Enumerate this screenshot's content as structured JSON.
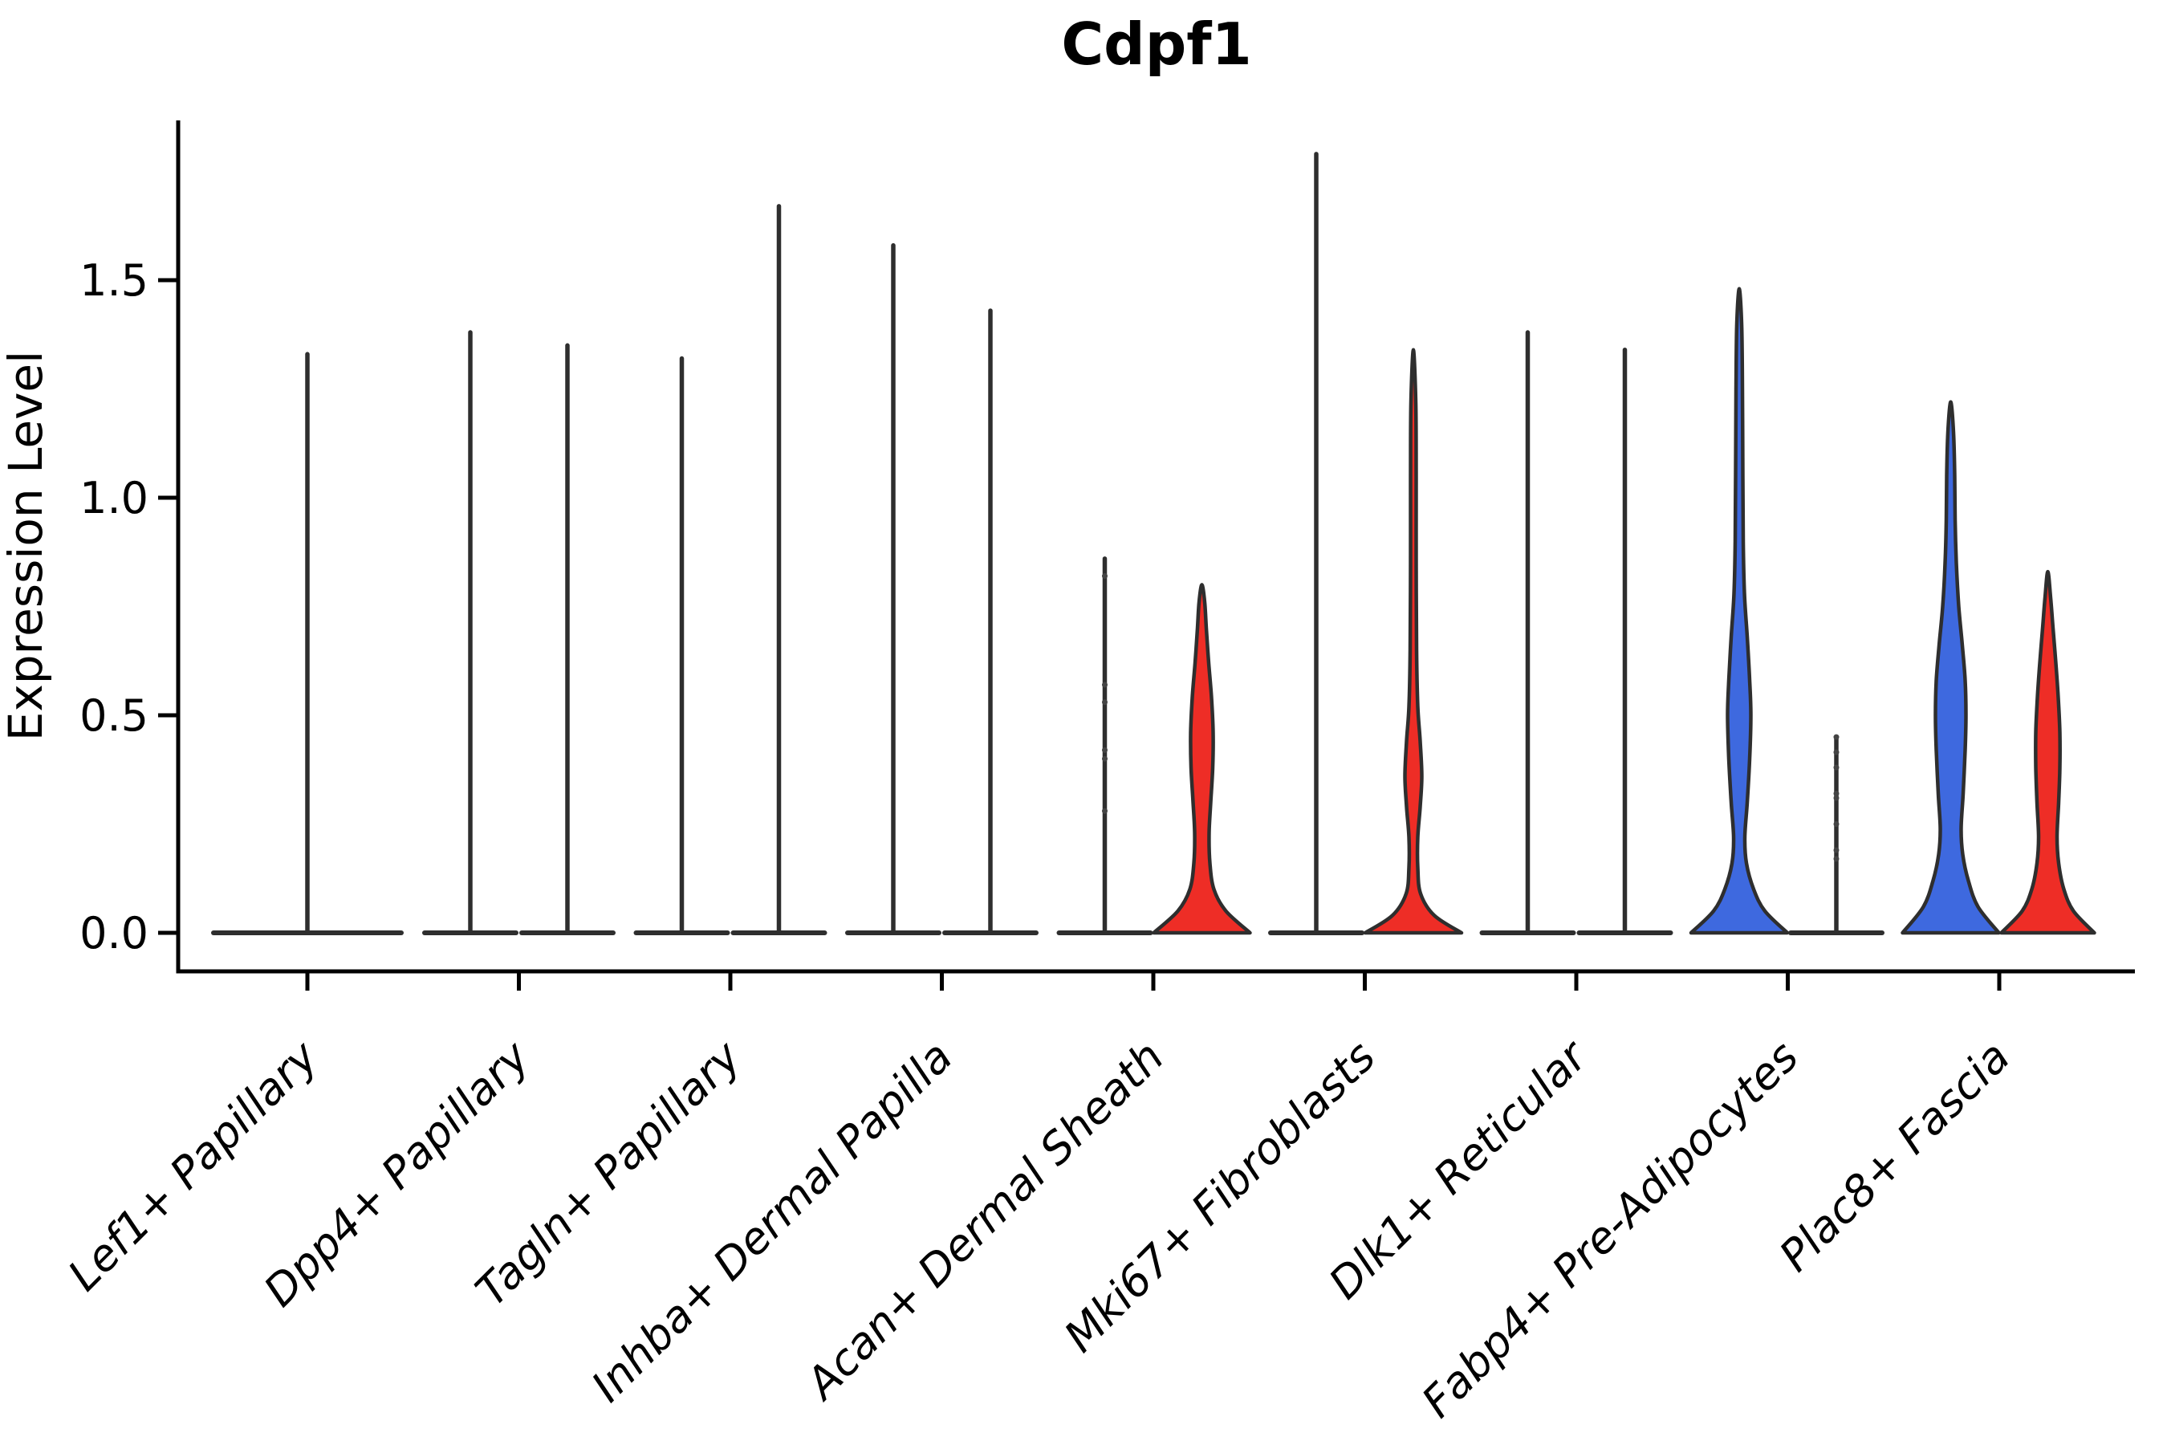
{
  "chart_data": {
    "type": "violin",
    "title": "Cdpf1",
    "ylabel": "Expression Level",
    "xlabel": "",
    "ytick_values": [
      0.0,
      0.5,
      1.0,
      1.5
    ],
    "ytick_labels": [
      "0.0",
      "0.5",
      "1.0",
      "1.5"
    ],
    "ylim": [
      -0.09,
      1.87
    ],
    "grid": false,
    "legend": "none",
    "categories": [
      "Lef1+ Papillary",
      "Dpp4+ Papillary",
      "Tagln+ Papillary",
      "Inhba+ Dermal Papilla",
      "Acan+ Dermal Sheath",
      "Mki67+ Fibroblasts",
      "Dlk1+ Reticular",
      "Fabp4+ Pre-Adipocytes",
      "Plac8+ Fascia"
    ],
    "colors": {
      "blue": "#3e69df",
      "red": "#ee2d26",
      "outline": "#2e2e2e",
      "axis": "#000000",
      "dot": "#444444"
    },
    "violins": [
      {
        "cat": 0,
        "side": "center",
        "shape": "line",
        "max": 1.33
      },
      {
        "cat": 1,
        "side": "left",
        "shape": "line",
        "max": 1.38
      },
      {
        "cat": 1,
        "side": "right",
        "shape": "line",
        "max": 1.35
      },
      {
        "cat": 2,
        "side": "left",
        "shape": "line",
        "max": 1.32
      },
      {
        "cat": 2,
        "side": "right",
        "shape": "line",
        "max": 1.67
      },
      {
        "cat": 3,
        "side": "left",
        "shape": "line",
        "max": 1.58
      },
      {
        "cat": 3,
        "side": "right",
        "shape": "line",
        "max": 1.43
      },
      {
        "cat": 4,
        "side": "left",
        "shape": "line",
        "max": 0.86,
        "points": [
          0.82,
          0.57,
          0.53,
          0.42,
          0.4,
          0.28
        ]
      },
      {
        "cat": 4,
        "side": "right",
        "shape": "violin",
        "color": "red",
        "max": 0.8,
        "profile": [
          [
            0,
            60
          ],
          [
            0.05,
            30
          ],
          [
            0.1,
            15
          ],
          [
            0.16,
            10
          ],
          [
            0.23,
            9
          ],
          [
            0.3,
            11
          ],
          [
            0.38,
            13.5
          ],
          [
            0.46,
            14
          ],
          [
            0.54,
            12
          ],
          [
            0.62,
            8.5
          ],
          [
            0.7,
            5.5
          ],
          [
            0.76,
            3.5
          ],
          [
            0.8,
            0
          ]
        ]
      },
      {
        "cat": 5,
        "side": "left",
        "shape": "line",
        "max": 1.79
      },
      {
        "cat": 5,
        "side": "right",
        "shape": "violin",
        "color": "red",
        "max": 1.34,
        "profile": [
          [
            0,
            60
          ],
          [
            0.04,
            26
          ],
          [
            0.09,
            9
          ],
          [
            0.15,
            5.5
          ],
          [
            0.22,
            5.5
          ],
          [
            0.29,
            8.5
          ],
          [
            0.36,
            10.5
          ],
          [
            0.44,
            8.5
          ],
          [
            0.52,
            5.5
          ],
          [
            0.65,
            4
          ],
          [
            0.85,
            3.5
          ],
          [
            1.05,
            3.5
          ],
          [
            1.22,
            3
          ],
          [
            1.34,
            0
          ]
        ]
      },
      {
        "cat": 6,
        "side": "left",
        "shape": "line",
        "max": 1.38
      },
      {
        "cat": 6,
        "side": "right",
        "shape": "line",
        "max": 1.34
      },
      {
        "cat": 7,
        "side": "left",
        "shape": "violin",
        "color": "blue",
        "max": 1.48,
        "profile": [
          [
            0,
            60
          ],
          [
            0.05,
            32
          ],
          [
            0.1,
            18
          ],
          [
            0.16,
            9
          ],
          [
            0.22,
            7
          ],
          [
            0.3,
            10
          ],
          [
            0.4,
            13
          ],
          [
            0.5,
            14.5
          ],
          [
            0.58,
            13
          ],
          [
            0.68,
            10
          ],
          [
            0.78,
            6.5
          ],
          [
            0.9,
            5
          ],
          [
            1.05,
            4.5
          ],
          [
            1.25,
            4
          ],
          [
            1.4,
            3
          ],
          [
            1.48,
            0
          ]
        ]
      },
      {
        "cat": 7,
        "side": "right",
        "shape": "line",
        "max": 0.45,
        "points": [
          0.45,
          0.415,
          0.38,
          0.32,
          0.31,
          0.25,
          0.19,
          0.17
        ]
      },
      {
        "cat": 8,
        "side": "left",
        "shape": "violin",
        "color": "blue",
        "max": 1.22,
        "profile": [
          [
            0,
            60
          ],
          [
            0.06,
            34
          ],
          [
            0.12,
            22
          ],
          [
            0.18,
            15
          ],
          [
            0.24,
            13
          ],
          [
            0.32,
            15.5
          ],
          [
            0.42,
            18
          ],
          [
            0.5,
            19
          ],
          [
            0.58,
            18
          ],
          [
            0.66,
            14.5
          ],
          [
            0.75,
            10
          ],
          [
            0.85,
            7
          ],
          [
            0.95,
            5.5
          ],
          [
            1.05,
            5
          ],
          [
            1.15,
            3.5
          ],
          [
            1.22,
            0
          ]
        ]
      },
      {
        "cat": 8,
        "side": "right",
        "shape": "violin",
        "color": "red",
        "max": 0.83,
        "profile": [
          [
            0,
            58
          ],
          [
            0.05,
            32
          ],
          [
            0.1,
            20
          ],
          [
            0.16,
            13.5
          ],
          [
            0.22,
            11.5
          ],
          [
            0.3,
            13.5
          ],
          [
            0.38,
            15
          ],
          [
            0.46,
            15
          ],
          [
            0.54,
            13
          ],
          [
            0.62,
            10
          ],
          [
            0.7,
            6.5
          ],
          [
            0.77,
            3.5
          ],
          [
            0.83,
            0
          ]
        ]
      }
    ]
  }
}
